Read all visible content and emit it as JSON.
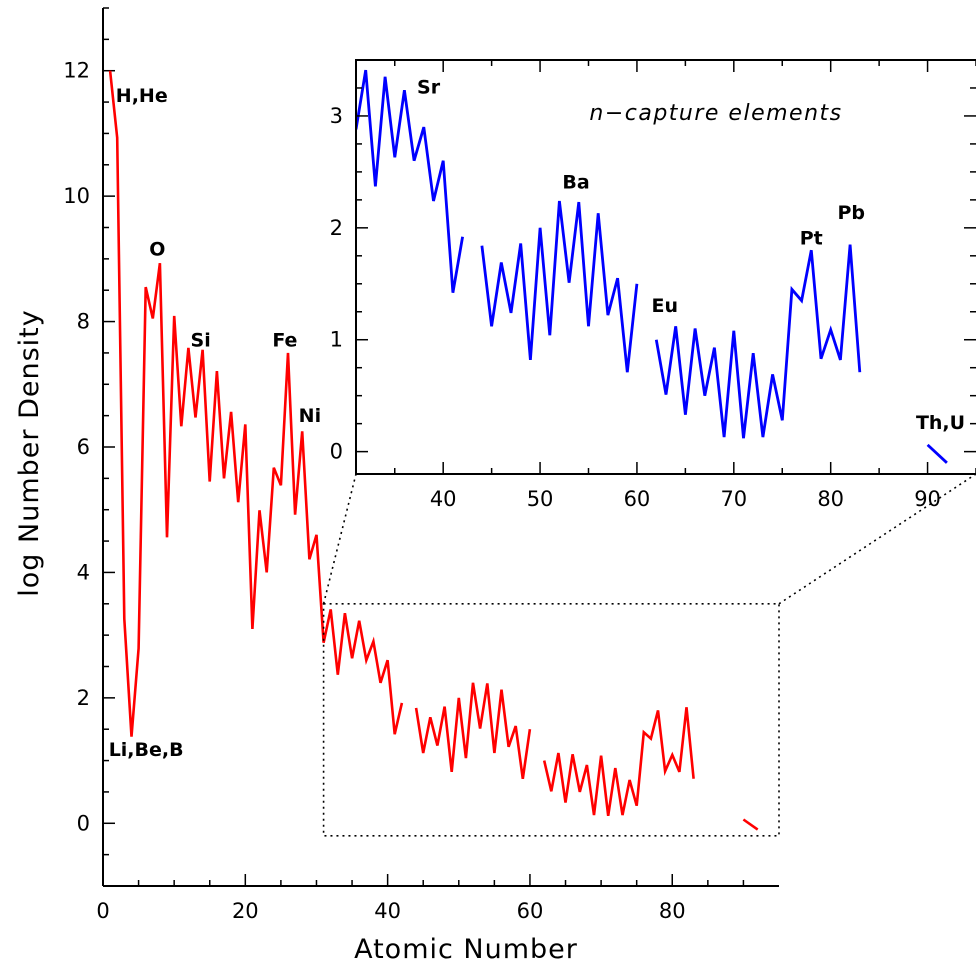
{
  "chart_data": [
    {
      "id": "main",
      "type": "line",
      "xlabel": "Atomic Number",
      "ylabel": "log Number Density",
      "xlim": [
        0,
        95
      ],
      "ylim": [
        -1,
        13
      ],
      "xticks": [
        0,
        20,
        40,
        60,
        80
      ],
      "yticks": [
        0,
        2,
        4,
        6,
        8,
        10,
        12
      ],
      "grid": false,
      "line_color": "#ff0000",
      "segments": [
        [
          [
            1,
            12.0
          ],
          [
            2,
            10.93
          ],
          [
            3,
            3.26
          ],
          [
            4,
            1.38
          ],
          [
            5,
            2.79
          ],
          [
            6,
            8.55
          ],
          [
            7,
            8.05
          ],
          [
            8,
            8.93
          ],
          [
            9,
            4.56
          ],
          [
            10,
            8.09
          ],
          [
            11,
            6.33
          ],
          [
            12,
            7.58
          ],
          [
            13,
            6.47
          ],
          [
            14,
            7.55
          ],
          [
            15,
            5.45
          ],
          [
            16,
            7.21
          ],
          [
            17,
            5.5
          ],
          [
            18,
            6.56
          ],
          [
            19,
            5.12
          ],
          [
            20,
            6.36
          ],
          [
            21,
            3.1
          ],
          [
            22,
            4.99
          ],
          [
            23,
            4.0
          ],
          [
            24,
            5.67
          ],
          [
            25,
            5.39
          ],
          [
            26,
            7.5
          ],
          [
            27,
            4.92
          ],
          [
            28,
            6.25
          ],
          [
            29,
            4.21
          ],
          [
            30,
            4.6
          ],
          [
            31,
            2.88
          ],
          [
            32,
            3.41
          ],
          [
            33,
            2.37
          ],
          [
            34,
            3.35
          ],
          [
            35,
            2.63
          ],
          [
            36,
            3.23
          ],
          [
            37,
            2.6
          ],
          [
            38,
            2.9
          ],
          [
            39,
            2.24
          ],
          [
            40,
            2.6
          ],
          [
            41,
            1.42
          ],
          [
            42,
            1.92
          ]
        ],
        [
          [
            44,
            1.84
          ],
          [
            45,
            1.12
          ],
          [
            46,
            1.69
          ],
          [
            47,
            1.24
          ],
          [
            48,
            1.86
          ],
          [
            49,
            0.82
          ],
          [
            50,
            2.0
          ],
          [
            51,
            1.04
          ],
          [
            52,
            2.24
          ],
          [
            53,
            1.51
          ],
          [
            54,
            2.23
          ],
          [
            55,
            1.12
          ],
          [
            56,
            2.13
          ],
          [
            57,
            1.22
          ],
          [
            58,
            1.55
          ],
          [
            59,
            0.71
          ],
          [
            60,
            1.5
          ]
        ],
        [
          [
            62,
            1.0
          ],
          [
            63,
            0.51
          ],
          [
            64,
            1.12
          ],
          [
            65,
            0.33
          ],
          [
            66,
            1.1
          ],
          [
            67,
            0.5
          ],
          [
            68,
            0.93
          ],
          [
            69,
            0.13
          ],
          [
            70,
            1.08
          ],
          [
            71,
            0.12
          ],
          [
            72,
            0.88
          ],
          [
            73,
            0.13
          ],
          [
            74,
            0.69
          ],
          [
            75,
            0.28
          ],
          [
            76,
            1.45
          ],
          [
            77,
            1.35
          ],
          [
            78,
            1.8
          ],
          [
            79,
            0.83
          ],
          [
            80,
            1.09
          ],
          [
            81,
            0.82
          ],
          [
            82,
            1.85
          ],
          [
            83,
            0.71
          ]
        ],
        [
          [
            90,
            0.06
          ],
          [
            92,
            -0.1
          ]
        ]
      ],
      "annotations": [
        {
          "text": "H,He",
          "x": 1.8,
          "y": 11.5
        },
        {
          "text": "O",
          "x": 6.5,
          "y": 9.05
        },
        {
          "text": "Si",
          "x": 12.3,
          "y": 7.6
        },
        {
          "text": "Fe",
          "x": 23.8,
          "y": 7.6
        },
        {
          "text": "Ni",
          "x": 27.5,
          "y": 6.4
        },
        {
          "text": "Li,Be,B",
          "x": 0.8,
          "y": 1.07
        }
      ],
      "zoom_box": {
        "xlim": [
          31,
          95
        ],
        "ylim": [
          -0.2,
          3.5
        ]
      }
    },
    {
      "id": "inset",
      "type": "line",
      "title": "n−capture elements",
      "xlim": [
        31,
        95
      ],
      "ylim": [
        -0.2,
        3.5
      ],
      "xticks": [
        40,
        50,
        60,
        70,
        80,
        90
      ],
      "yticks": [
        0,
        1,
        2,
        3
      ],
      "grid": false,
      "line_color": "#0000ff",
      "annotations": [
        {
          "text": "Sr",
          "x": 37.3,
          "y": 3.2
        },
        {
          "text": "Ba",
          "x": 52.3,
          "y": 2.35
        },
        {
          "text": "Eu",
          "x": 61.5,
          "y": 1.25
        },
        {
          "text": "Pt",
          "x": 76.8,
          "y": 1.85
        },
        {
          "text": "Pb",
          "x": 80.7,
          "y": 2.08
        },
        {
          "text": "Th,U",
          "x": 88.8,
          "y": 0.2
        }
      ]
    }
  ]
}
